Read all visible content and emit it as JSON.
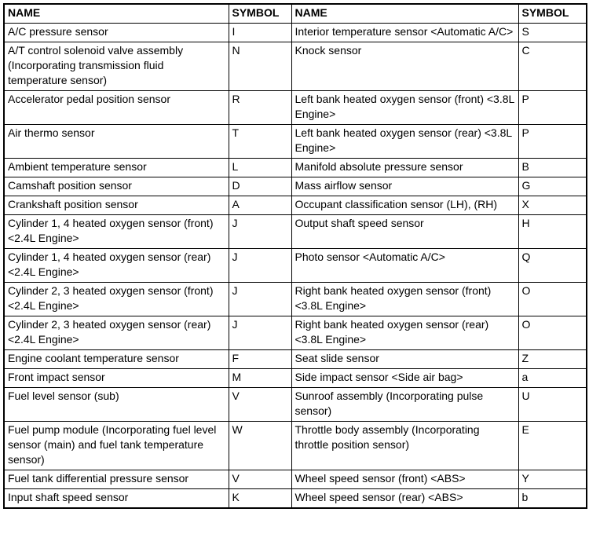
{
  "colors": {
    "background": "#ffffff",
    "border": "#000000",
    "text": "#000000"
  },
  "table": {
    "headers": [
      "NAME",
      "SYMBOL",
      "NAME",
      "SYMBOL"
    ],
    "rows": [
      [
        "A/C pressure sensor",
        "I",
        "Interior temperature sensor <Automatic A/C>",
        "S"
      ],
      [
        "A/T control solenoid valve assembly (Incorporating transmission fluid temperature sensor)",
        "N",
        "Knock sensor",
        "C"
      ],
      [
        "Accelerator pedal position sensor",
        "R",
        "Left bank heated oxygen sensor (front) <3.8L Engine>",
        "P"
      ],
      [
        "Air thermo sensor",
        "T",
        "Left bank heated oxygen sensor (rear) <3.8L Engine>",
        "P"
      ],
      [
        "Ambient temperature sensor",
        "L",
        "Manifold absolute pressure sensor",
        "B"
      ],
      [
        "Camshaft position sensor",
        "D",
        "Mass airflow sensor",
        "G"
      ],
      [
        "Crankshaft position sensor",
        "A",
        "Occupant classification sensor (LH), (RH)",
        "X"
      ],
      [
        "Cylinder 1, 4 heated oxygen sensor (front) <2.4L Engine>",
        "J",
        "Output shaft speed sensor",
        "H"
      ],
      [
        "Cylinder 1, 4 heated oxygen sensor (rear) <2.4L Engine>",
        "J",
        "Photo sensor <Automatic A/C>",
        "Q"
      ],
      [
        "Cylinder 2, 3 heated oxygen sensor (front) <2.4L Engine>",
        "J",
        "Right bank heated oxygen sensor (front) <3.8L Engine>",
        "O"
      ],
      [
        "Cylinder 2, 3 heated oxygen sensor (rear) <2.4L Engine>",
        "J",
        "Right bank heated oxygen sensor (rear) <3.8L Engine>",
        "O"
      ],
      [
        "Engine coolant temperature sensor",
        "F",
        "Seat slide sensor",
        "Z"
      ],
      [
        "Front impact sensor",
        "M",
        "Side impact sensor <Side air bag>",
        "a"
      ],
      [
        "Fuel level sensor (sub)",
        "V",
        "Sunroof assembly (Incorporating pulse sensor)",
        "U"
      ],
      [
        "Fuel pump module (Incorporating fuel level sensor (main) and fuel tank temperature sensor)",
        "W",
        "Throttle body assembly (Incorporating throttle position sensor)",
        "E"
      ],
      [
        "Fuel tank differential pressure sensor",
        "V",
        "Wheel speed sensor (front) <ABS>",
        "Y"
      ],
      [
        "Input shaft speed sensor",
        "K",
        "Wheel speed sensor (rear) <ABS>",
        "b"
      ]
    ]
  }
}
